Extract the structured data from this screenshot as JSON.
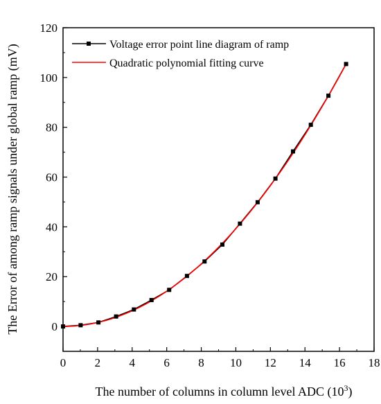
{
  "chart_data": {
    "type": "line",
    "xlabel": "The number of columns in column level ADC (10",
    "xlabel_sup": "3",
    "xlabel_end": ")",
    "ylabel": "The Error of among ramp signals under global ramp (mV)",
    "xlim": [
      0,
      18
    ],
    "ylim": [
      -10,
      120
    ],
    "xticks": [
      0,
      2,
      4,
      6,
      8,
      10,
      12,
      14,
      16,
      18
    ],
    "yticks": [
      0,
      20,
      40,
      60,
      80,
      100,
      120
    ],
    "legend_position": "top-left",
    "series": [
      {
        "name": "Voltage error point line diagram of ramp",
        "style": "line-square-markers",
        "color": "#000000",
        "x": [
          0,
          1.02,
          2.05,
          3.07,
          4.1,
          5.12,
          6.14,
          7.17,
          8.19,
          9.22,
          10.24,
          11.26,
          12.29,
          13.31,
          14.34,
          15.36,
          16.38
        ],
        "y": [
          0,
          0.5,
          1.6,
          4.0,
          6.8,
          10.6,
          14.7,
          20.3,
          26.1,
          32.9,
          41.3,
          49.9,
          59.4,
          70.3,
          81.0,
          92.7,
          105.4
        ]
      },
      {
        "name": "Quadratic polynomial fitting curve",
        "style": "line",
        "color": "#ff0000",
        "fit": "quadratic",
        "coefficients": {
          "a": 0.3928,
          "b": 0.0,
          "c": 0.0
        }
      }
    ]
  }
}
